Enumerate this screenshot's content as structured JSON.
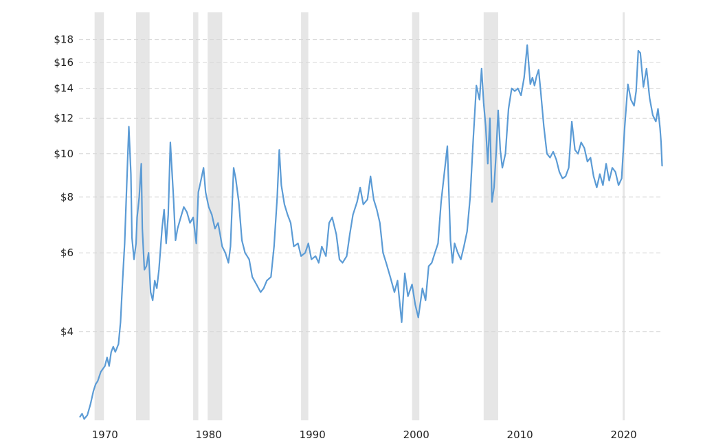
{
  "chart_data": {
    "type": "line",
    "title": "",
    "xlabel": "",
    "ylabel": "",
    "y_scale": "log",
    "xlim": [
      1967.5,
      2023.8
    ],
    "ylim": [
      2.55,
      19.5
    ],
    "grid": "horizontal dashed",
    "y_ticks": [
      {
        "value": 4,
        "label": "$4"
      },
      {
        "value": 6,
        "label": "$6"
      },
      {
        "value": 8,
        "label": "$8"
      },
      {
        "value": 10,
        "label": "$10"
      },
      {
        "value": 12,
        "label": "$12"
      },
      {
        "value": 14,
        "label": "$14"
      },
      {
        "value": 16,
        "label": "$16"
      },
      {
        "value": 18,
        "label": "$18"
      }
    ],
    "x_ticks": [
      {
        "value": 1970,
        "label": "1970"
      },
      {
        "value": 1980,
        "label": "1980"
      },
      {
        "value": 1990,
        "label": "1990"
      },
      {
        "value": 2000,
        "label": "2000"
      },
      {
        "value": 2010,
        "label": "2010"
      },
      {
        "value": 2020,
        "label": "2020"
      }
    ],
    "recessions": [
      [
        1969.0,
        1969.9
      ],
      [
        1973.0,
        1974.3
      ],
      [
        1978.5,
        1979.0
      ],
      [
        1979.9,
        1981.3
      ],
      [
        1988.9,
        1989.6
      ],
      [
        1999.6,
        2000.3
      ],
      [
        2006.5,
        2007.9
      ],
      [
        2019.9,
        2020.1
      ]
    ],
    "series": [
      {
        "color": "#5b9bd5",
        "x": [
          1967.6,
          1967.8,
          1968.0,
          1968.3,
          1968.6,
          1968.9,
          1969.1,
          1969.3,
          1969.6,
          1969.8,
          1970.0,
          1970.2,
          1970.4,
          1970.6,
          1970.8,
          1971.0,
          1971.3,
          1971.5,
          1971.7,
          1971.9,
          1972.1,
          1972.3,
          1972.5,
          1972.6,
          1972.8,
          1973.0,
          1973.1,
          1973.3,
          1973.5,
          1973.6,
          1973.8,
          1974.0,
          1974.2,
          1974.4,
          1974.6,
          1974.8,
          1975.0,
          1975.2,
          1975.5,
          1975.7,
          1975.9,
          1976.1,
          1976.3,
          1976.6,
          1976.8,
          1977.0,
          1977.3,
          1977.6,
          1977.9,
          1978.2,
          1978.5,
          1978.8,
          1979.0,
          1979.2,
          1979.5,
          1979.7,
          1980.0,
          1980.3,
          1980.6,
          1980.9,
          1981.1,
          1981.3,
          1981.6,
          1981.9,
          1982.1,
          1982.4,
          1982.6,
          1982.9,
          1983.2,
          1983.5,
          1983.9,
          1984.2,
          1984.6,
          1985.0,
          1985.3,
          1985.6,
          1986.0,
          1986.3,
          1986.6,
          1986.8,
          1987.0,
          1987.3,
          1987.6,
          1987.9,
          1988.2,
          1988.6,
          1988.9,
          1989.3,
          1989.6,
          1989.9,
          1990.3,
          1990.6,
          1990.9,
          1991.3,
          1991.6,
          1991.9,
          1992.3,
          1992.6,
          1992.9,
          1993.3,
          1993.6,
          1993.9,
          1994.3,
          1994.6,
          1994.9,
          1995.3,
          1995.6,
          1995.9,
          1996.2,
          1996.5,
          1996.8,
          1997.1,
          1997.5,
          1997.9,
          1998.2,
          1998.6,
          1998.9,
          1999.2,
          1999.6,
          1999.9,
          2000.2,
          2000.6,
          2000.9,
          2001.2,
          2001.5,
          2001.8,
          2002.1,
          2002.4,
          2002.7,
          2003.0,
          2003.3,
          2003.5,
          2003.7,
          2004.0,
          2004.3,
          2004.6,
          2004.9,
          2005.2,
          2005.5,
          2005.8,
          2006.1,
          2006.3,
          2006.5,
          2006.7,
          2006.9,
          2007.1,
          2007.3,
          2007.5,
          2007.7,
          2007.9,
          2008.1,
          2008.3,
          2008.6,
          2008.9,
          2009.2,
          2009.5,
          2009.8,
          2010.1,
          2010.4,
          2010.7,
          2011.0,
          2011.2,
          2011.4,
          2011.6,
          2011.8,
          2012.0,
          2012.3,
          2012.6,
          2012.9,
          2013.2,
          2013.5,
          2013.8,
          2014.1,
          2014.4,
          2014.7,
          2015.0,
          2015.3,
          2015.6,
          2015.9,
          2016.2,
          2016.5,
          2016.8,
          2017.1,
          2017.4,
          2017.7,
          2018.0,
          2018.3,
          2018.6,
          2018.9,
          2019.2,
          2019.5,
          2019.8,
          2020.1,
          2020.4,
          2020.7,
          2021.0,
          2021.2,
          2021.4,
          2021.6,
          2021.9,
          2022.2,
          2022.5,
          2022.8,
          2023.1,
          2023.3,
          2023.5,
          2023.6,
          2023.7
        ],
        "values": [
          2.58,
          2.62,
          2.55,
          2.6,
          2.75,
          2.95,
          3.05,
          3.1,
          3.25,
          3.3,
          3.35,
          3.5,
          3.35,
          3.6,
          3.7,
          3.6,
          3.75,
          4.2,
          5.2,
          6.3,
          8.5,
          11.5,
          9.0,
          6.5,
          5.8,
          6.3,
          7.2,
          8.0,
          9.5,
          6.8,
          5.5,
          5.6,
          6.0,
          4.9,
          4.7,
          5.2,
          5.0,
          5.5,
          6.8,
          7.5,
          6.3,
          7.3,
          10.6,
          8.0,
          6.4,
          6.8,
          7.2,
          7.6,
          7.4,
          7.0,
          7.2,
          6.3,
          8.2,
          8.6,
          9.3,
          8.2,
          7.6,
          7.3,
          6.8,
          7.0,
          6.6,
          6.2,
          6.0,
          5.7,
          6.2,
          9.3,
          8.8,
          7.8,
          6.4,
          6.0,
          5.8,
          5.3,
          5.1,
          4.9,
          5.0,
          5.2,
          5.3,
          6.2,
          8.0,
          10.2,
          8.5,
          7.7,
          7.3,
          7.0,
          6.2,
          6.3,
          5.9,
          6.0,
          6.3,
          5.8,
          5.9,
          5.7,
          6.2,
          5.9,
          7.0,
          7.2,
          6.6,
          5.8,
          5.7,
          5.9,
          6.6,
          7.3,
          7.8,
          8.4,
          7.7,
          7.9,
          8.9,
          7.9,
          7.5,
          7.0,
          6.0,
          5.7,
          5.3,
          4.9,
          5.2,
          4.2,
          5.4,
          4.8,
          5.1,
          4.6,
          4.3,
          5.0,
          4.7,
          5.6,
          5.7,
          6.0,
          6.3,
          7.8,
          9.0,
          10.4,
          6.4,
          5.7,
          6.3,
          6.0,
          5.8,
          6.2,
          6.7,
          8.0,
          10.8,
          14.2,
          13.2,
          15.5,
          13.0,
          11.5,
          9.5,
          12.0,
          7.8,
          8.4,
          10.0,
          12.5,
          10.2,
          9.3,
          10.0,
          12.6,
          14.0,
          13.8,
          14.0,
          13.5,
          14.8,
          17.5,
          14.3,
          14.8,
          14.2,
          14.9,
          15.4,
          13.8,
          11.5,
          10.0,
          9.8,
          10.1,
          9.7,
          9.1,
          8.8,
          8.9,
          9.3,
          11.8,
          10.2,
          10.0,
          10.6,
          10.3,
          9.6,
          9.8,
          8.9,
          8.4,
          9.0,
          8.5,
          9.5,
          8.7,
          9.3,
          9.1,
          8.5,
          8.8,
          11.5,
          14.3,
          13.2,
          12.8,
          13.8,
          17.0,
          16.8,
          14.1,
          15.5,
          13.3,
          12.2,
          11.8,
          12.6,
          11.4,
          10.6,
          9.4
        ]
      }
    ]
  }
}
